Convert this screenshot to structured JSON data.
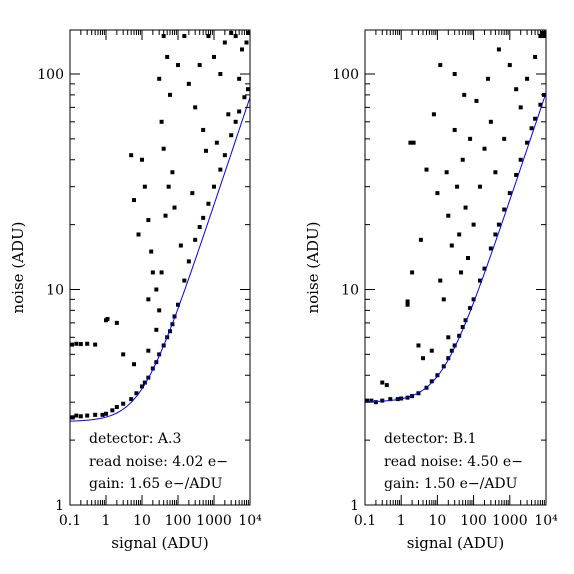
{
  "chart_data": [
    {
      "type": "scatter",
      "xlabel": "signal (ADU)",
      "ylabel": "noise (ADU)",
      "xscale": "log",
      "yscale": "log",
      "xlim": [
        0.1,
        10000
      ],
      "ylim": [
        1,
        160
      ],
      "x_tick_labels": [
        "0.1",
        "1",
        "10",
        "100",
        "1000",
        "10⁴"
      ],
      "y_tick_labels": [
        "1",
        "10",
        "100"
      ],
      "annotations": [
        "detector: A.3",
        "read noise: 4.02 e−",
        "gain: 1.65 e−/ADU"
      ],
      "fit_curve": {
        "read_noise_e": 4.02,
        "gain_e_per_adu": 1.65,
        "color": "#0000ff"
      },
      "series": [
        {
          "marker": "filled-square",
          "color": "#000000",
          "points": [
            [
              0.1,
              2.55
            ],
            [
              0.12,
              2.55
            ],
            [
              0.15,
              2.6
            ],
            [
              0.2,
              2.58
            ],
            [
              0.3,
              2.6
            ],
            [
              0.5,
              2.62
            ],
            [
              0.8,
              2.62
            ],
            [
              1.0,
              2.65
            ],
            [
              1.5,
              2.75
            ],
            [
              2.0,
              2.85
            ],
            [
              3.0,
              2.95
            ],
            [
              5.0,
              3.1
            ],
            [
              7.0,
              3.3
            ],
            [
              10,
              3.55
            ],
            [
              12,
              3.7
            ],
            [
              15,
              3.9
            ],
            [
              20,
              4.3
            ],
            [
              25,
              4.6
            ],
            [
              30,
              5.0
            ],
            [
              40,
              5.5
            ],
            [
              50,
              6.0
            ],
            [
              60,
              6.4
            ],
            [
              70,
              6.9
            ],
            [
              80,
              7.5
            ],
            [
              100,
              8.5
            ],
            [
              150,
              11.0
            ],
            [
              200,
              13.5
            ],
            [
              300,
              17.0
            ],
            [
              400,
              19.5
            ],
            [
              500,
              21.5
            ],
            [
              700,
              25.0
            ],
            [
              1000,
              30.0
            ],
            [
              1500,
              36.0
            ],
            [
              2000,
              42.0
            ],
            [
              3000,
              52.0
            ],
            [
              4000,
              60.0
            ],
            [
              5000,
              67.0
            ],
            [
              7000,
              78.0
            ],
            [
              9000,
              85.0
            ],
            [
              0.1,
              5.55
            ],
            [
              0.15,
              5.6
            ],
            [
              0.2,
              5.58
            ],
            [
              0.3,
              5.6
            ],
            [
              0.5,
              5.55
            ],
            [
              1.0,
              7.2
            ],
            [
              1.1,
              7.3
            ],
            [
              5.0,
              42.0
            ],
            [
              6.0,
              26.0
            ],
            [
              8.0,
              18.0
            ],
            [
              10,
              40.0
            ],
            [
              12,
              30.0
            ],
            [
              15,
              21.0
            ],
            [
              15,
              9.0
            ],
            [
              18,
              15.0
            ],
            [
              20,
              12.0
            ],
            [
              25,
              10.0
            ],
            [
              30,
              8.0
            ],
            [
              30,
              95.0
            ],
            [
              35,
              60.0
            ],
            [
              40,
              45.0
            ],
            [
              40,
              150.0
            ],
            [
              50,
              120.0
            ],
            [
              60,
              80.0
            ],
            [
              70,
              35.0
            ],
            [
              80,
              24.0
            ],
            [
              100,
              110.0
            ],
            [
              150,
              150.0
            ],
            [
              200,
              90.0
            ],
            [
              300,
              70.0
            ],
            [
              400,
              110.0
            ],
            [
              500,
              55.0
            ],
            [
              700,
              150.0
            ],
            [
              1000,
              120.0
            ],
            [
              1500,
              100.0
            ],
            [
              2000,
              140.0
            ],
            [
              3000,
              155.0
            ],
            [
              4000,
              150.0
            ],
            [
              6000,
              130.0
            ],
            [
              8000,
              140.0
            ],
            [
              9500,
              155.0
            ],
            [
              2.0,
              7.0
            ],
            [
              3.0,
              5.0
            ],
            [
              6.0,
              4.5
            ],
            [
              15,
              5.2
            ],
            [
              25,
              6.5
            ],
            [
              35,
              12.0
            ],
            [
              45,
              22.0
            ],
            [
              55,
              30.0
            ],
            [
              120,
              16.0
            ],
            [
              250,
              28.0
            ],
            [
              600,
              44.0
            ],
            [
              1200,
              48.0
            ],
            [
              2500,
              65.0
            ],
            [
              5000,
              95.0
            ]
          ]
        }
      ]
    },
    {
      "type": "scatter",
      "xlabel": "signal (ADU)",
      "ylabel": "noise (ADU)",
      "xscale": "log",
      "yscale": "log",
      "xlim": [
        0.1,
        10000
      ],
      "ylim": [
        1,
        160
      ],
      "x_tick_labels": [
        "0.1",
        "1",
        "10",
        "100",
        "1000",
        "10⁴"
      ],
      "y_tick_labels": [
        "1",
        "10",
        "100"
      ],
      "annotations": [
        "detector: B.1",
        "read noise: 4.50 e−",
        "gain: 1.50 e−/ADU"
      ],
      "fit_curve": {
        "read_noise_e": 4.5,
        "gain_e_per_adu": 1.5,
        "color": "#0000ff"
      },
      "series": [
        {
          "marker": "filled-square",
          "color": "#000000",
          "points": [
            [
              0.1,
              3.05
            ],
            [
              0.15,
              3.05
            ],
            [
              0.2,
              3.0
            ],
            [
              0.3,
              3.05
            ],
            [
              0.5,
              3.1
            ],
            [
              0.8,
              3.1
            ],
            [
              1.0,
              3.12
            ],
            [
              1.5,
              3.15
            ],
            [
              2.0,
              3.2
            ],
            [
              3.0,
              3.3
            ],
            [
              5.0,
              3.5
            ],
            [
              7.0,
              3.75
            ],
            [
              10,
              4.0
            ],
            [
              15,
              4.4
            ],
            [
              20,
              4.8
            ],
            [
              25,
              5.2
            ],
            [
              30,
              5.5
            ],
            [
              40,
              6.1
            ],
            [
              50,
              6.7
            ],
            [
              60,
              7.2
            ],
            [
              80,
              8.2
            ],
            [
              100,
              9.0
            ],
            [
              150,
              11.0
            ],
            [
              200,
              12.5
            ],
            [
              300,
              15.5
            ],
            [
              400,
              18.0
            ],
            [
              500,
              20.0
            ],
            [
              700,
              23.5
            ],
            [
              1000,
              28.0
            ],
            [
              1500,
              34.0
            ],
            [
              2000,
              40.0
            ],
            [
              3000,
              48.0
            ],
            [
              4000,
              56.0
            ],
            [
              5000,
              62.0
            ],
            [
              7000,
              72.0
            ],
            [
              9000,
              80.0
            ],
            [
              0.3,
              3.7
            ],
            [
              0.4,
              3.6
            ],
            [
              1.5,
              8.5
            ],
            [
              1.5,
              8.8
            ],
            [
              1.8,
              48.0
            ],
            [
              2.2,
              48.0
            ],
            [
              2.0,
              12.0
            ],
            [
              3.0,
              5.5
            ],
            [
              3.5,
              17.0
            ],
            [
              4.0,
              4.8
            ],
            [
              5.0,
              36.0
            ],
            [
              7.0,
              5.2
            ],
            [
              8.0,
              65.0
            ],
            [
              10,
              28.0
            ],
            [
              12,
              11.0
            ],
            [
              12,
              110.0
            ],
            [
              15,
              9.0
            ],
            [
              18,
              35.0
            ],
            [
              20,
              22.0
            ],
            [
              20,
              6.0
            ],
            [
              25,
              16.0
            ],
            [
              30,
              55.0
            ],
            [
              30,
              100.0
            ],
            [
              35,
              30.0
            ],
            [
              40,
              18.0
            ],
            [
              45,
              12.0
            ],
            [
              50,
              40.0
            ],
            [
              55,
              80.0
            ],
            [
              60,
              24.0
            ],
            [
              70,
              14.0
            ],
            [
              80,
              50.0
            ],
            [
              100,
              20.0
            ],
            [
              120,
              75.0
            ],
            [
              150,
              30.0
            ],
            [
              200,
              45.0
            ],
            [
              250,
              95.0
            ],
            [
              300,
              60.0
            ],
            [
              400,
              35.0
            ],
            [
              500,
              130.0
            ],
            [
              700,
              50.0
            ],
            [
              1000,
              110.0
            ],
            [
              1500,
              85.0
            ],
            [
              2000,
              70.0
            ],
            [
              3000,
              95.0
            ],
            [
              5000,
              120.0
            ],
            [
              7000,
              150.0
            ],
            [
              8000,
              155.0
            ],
            [
              9500,
              155.0
            ],
            [
              9800,
              150.0
            ]
          ]
        }
      ]
    }
  ]
}
